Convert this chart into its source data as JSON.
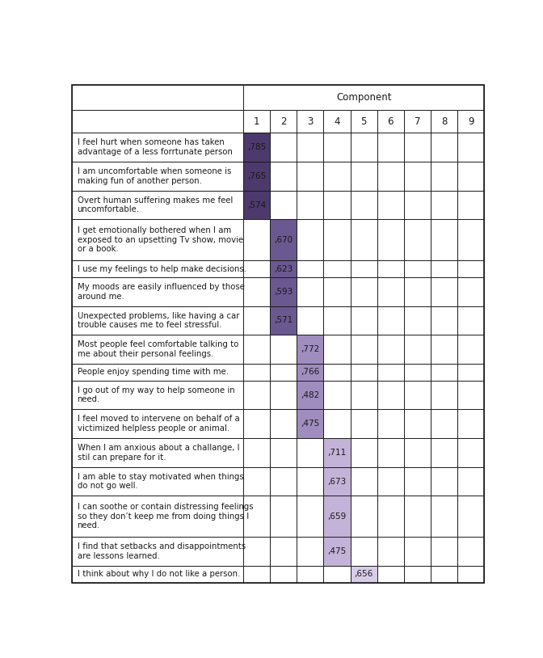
{
  "component_label": "Component",
  "col_headers": [
    "1",
    "2",
    "3",
    "4",
    "5",
    "6",
    "7",
    "8",
    "9"
  ],
  "rows": [
    {
      "text": "I feel hurt when someone has taken\nadvantage of a less forrtunate person",
      "values": [
        ",785",
        "",
        "",
        "",
        "",
        "",
        "",
        "",
        ""
      ],
      "highlighted_col": 0
    },
    {
      "text": "I am uncomfortable when someone is\nmaking fun of another person.",
      "values": [
        ",765",
        "",
        "",
        "",
        "",
        "",
        "",
        "",
        ""
      ],
      "highlighted_col": 0
    },
    {
      "text": "Overt human suffering makes me feel\nuncomfortable.",
      "values": [
        ",574",
        "",
        "",
        "",
        "",
        "",
        "",
        "",
        ""
      ],
      "highlighted_col": 0
    },
    {
      "text": "I get emotionally bothered when I am\nexposed to an upsetting Tv show, movie\nor a book.",
      "values": [
        "",
        ",670",
        "",
        "",
        "",
        "",
        "",
        "",
        ""
      ],
      "highlighted_col": 1
    },
    {
      "text": "I use my feelings to help make decisions.",
      "values": [
        "",
        ",623",
        "",
        "",
        "",
        "",
        "",
        "",
        ""
      ],
      "highlighted_col": 1
    },
    {
      "text": "My moods are easily influenced by those\naround me.",
      "values": [
        "",
        ",593",
        "",
        "",
        "",
        "",
        "",
        "",
        ""
      ],
      "highlighted_col": 1
    },
    {
      "text": "Unexpected problems, like having a car\ntrouble causes me to feel stressful.",
      "values": [
        "",
        ",571",
        "",
        "",
        "",
        "",
        "",
        "",
        ""
      ],
      "highlighted_col": 1
    },
    {
      "text": "Most people feel comfortable talking to\nme about their personal feelings.",
      "values": [
        "",
        "",
        ",772",
        "",
        "",
        "",
        "",
        "",
        ""
      ],
      "highlighted_col": 2
    },
    {
      "text": "People enjoy spending time with me.",
      "values": [
        "",
        "",
        ",766",
        "",
        "",
        "",
        "",
        "",
        ""
      ],
      "highlighted_col": 2
    },
    {
      "text": "I go out of my way to help someone in\nneed.",
      "values": [
        "",
        "",
        ",482",
        "",
        "",
        "",
        "",
        "",
        ""
      ],
      "highlighted_col": 2
    },
    {
      "text": "I feel moved to intervene on behalf of a\nvictimized helpless people or animal.",
      "values": [
        "",
        "",
        ",475",
        "",
        "",
        "",
        "",
        "",
        ""
      ],
      "highlighted_col": 2
    },
    {
      "text": "When I am anxious about a challange, I\nstil can prepare for it.",
      "values": [
        "",
        "",
        "",
        ",711",
        "",
        "",
        "",
        "",
        ""
      ],
      "highlighted_col": 3
    },
    {
      "text": "I am able to stay motivated when things\ndo not go well.",
      "values": [
        "",
        "",
        "",
        ",673",
        "",
        "",
        "",
        "",
        ""
      ],
      "highlighted_col": 3
    },
    {
      "text": "I can soothe or contain distressing feelings\nso they don’t keep me from doing things I\nneed.",
      "values": [
        "",
        "",
        "",
        ",659",
        "",
        "",
        "",
        "",
        ""
      ],
      "highlighted_col": 3
    },
    {
      "text": "I find that setbacks and disappointments\nare lessons learned.",
      "values": [
        "",
        "",
        "",
        ",475",
        "",
        "",
        "",
        "",
        ""
      ],
      "highlighted_col": 3
    },
    {
      "text": "I think about why I do not like a person.",
      "values": [
        "",
        "",
        "",
        "",
        ",656",
        "",
        "",
        "",
        ""
      ],
      "highlighted_col": 4
    }
  ],
  "highlight_colors": {
    "0": "#4b3a6b",
    "1": "#6a5890",
    "2": "#9f8dbf",
    "3": "#c3b3d8",
    "4": "#d8cce8"
  },
  "bg_color": "#ffffff",
  "border_color": "#1a1a1a",
  "text_color": "#1a1a1a",
  "num_line_heights": {
    "1": 2,
    "2": 2,
    "3": 2,
    "4": 3,
    "5": 1,
    "6": 2,
    "7": 2,
    "8": 2,
    "9": 1,
    "10": 2,
    "11": 2,
    "12": 2,
    "13": 2,
    "14": 3,
    "15": 2,
    "16": 1
  }
}
